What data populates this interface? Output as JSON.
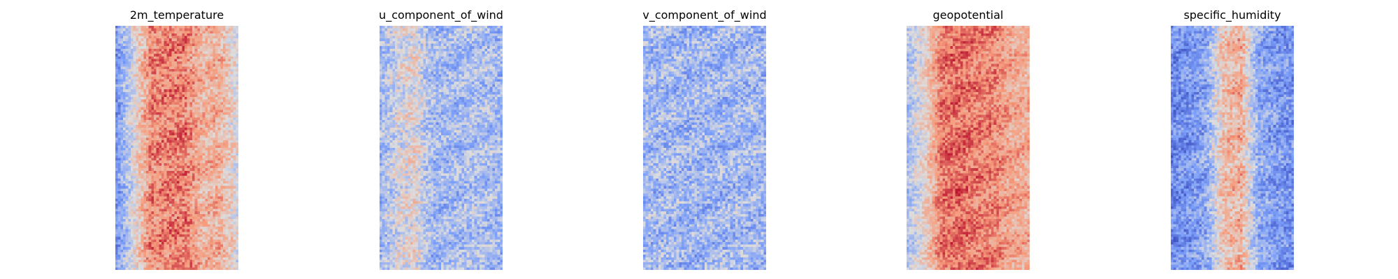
{
  "chart_data": [
    {
      "type": "heatmap",
      "title": "2m_temperature",
      "colormap": "coolwarm",
      "grid": false,
      "axes": "off",
      "grid_shape": [
        96,
        48
      ],
      "pattern": "vertical bands: blue/light at left edge, deep red band in center-left, salmon toward right, light grey speckle at far right",
      "column_profile": [
        -0.55,
        0.0,
        0.55,
        0.58,
        0.58,
        0.3,
        0.35,
        0.0
      ],
      "noise": 0.25
    },
    {
      "type": "heatmap",
      "title": "u_component_of_wind",
      "colormap": "coolwarm",
      "grid": false,
      "axes": "off",
      "grid_shape": [
        96,
        48
      ],
      "pattern": "mostly light blue field with a narrow red/orange streak near upper left and scattered warm/cool speckle",
      "column_profile": [
        -0.3,
        -0.05,
        0.05,
        -0.3,
        -0.3,
        -0.25,
        -0.25,
        -0.3
      ],
      "noise": 0.28
    },
    {
      "type": "heatmap",
      "title": "v_component_of_wind",
      "colormap": "coolwarm",
      "grid": false,
      "axes": "off",
      "grid_shape": [
        96,
        48
      ],
      "pattern": "pale blue field with scattered darker blue blobs and a few small red spots",
      "column_profile": [
        -0.3,
        -0.3,
        -0.32,
        -0.32,
        -0.32,
        -0.3,
        -0.3,
        -0.3
      ],
      "noise": 0.3
    },
    {
      "type": "heatmap",
      "title": "geopotential",
      "colormap": "coolwarm",
      "grid": false,
      "axes": "off",
      "grid_shape": [
        96,
        48
      ],
      "pattern": "bluish speckle at left edge, deep red center band, salmon at right",
      "column_profile": [
        -0.25,
        0.1,
        0.62,
        0.65,
        0.6,
        0.55,
        0.4,
        0.35
      ],
      "noise": 0.22
    },
    {
      "type": "heatmap",
      "title": "specific_humidity",
      "colormap": "coolwarm",
      "grid": false,
      "axes": "off",
      "grid_shape": [
        96,
        48
      ],
      "pattern": "blue field with a narrow red/grey vertical band in the center",
      "column_profile": [
        -0.62,
        -0.55,
        -0.4,
        0.25,
        0.35,
        -0.4,
        -0.5,
        -0.55
      ],
      "noise": 0.28
    }
  ]
}
